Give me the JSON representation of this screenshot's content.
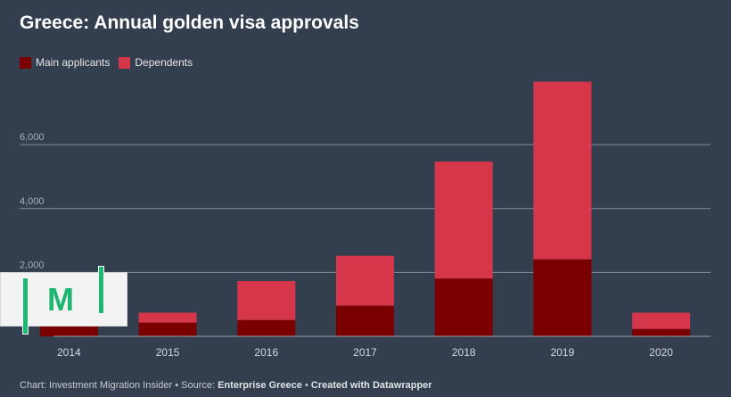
{
  "chart_data": {
    "type": "bar",
    "stacked": true,
    "title": "Greece: Annual golden visa approvals",
    "categories": [
      "2014",
      "2015",
      "2016",
      "2017",
      "2018",
      "2019",
      "2020"
    ],
    "series": [
      {
        "name": "Main applicants",
        "color": "#7a0000",
        "values": [
          400,
          430,
          510,
          960,
          1810,
          2410,
          230
        ]
      },
      {
        "name": "Dependents",
        "color": "#d63649",
        "values": [
          700,
          310,
          1220,
          1560,
          3660,
          5560,
          510
        ]
      }
    ],
    "ylim": [
      0,
      8000
    ],
    "yticks": [
      {
        "v": 2000,
        "label": "2,000"
      },
      {
        "v": 4000,
        "label": "4,000"
      },
      {
        "v": 6000,
        "label": "6,000"
      }
    ],
    "grid": true,
    "legend": "top-left",
    "xlabel": "",
    "ylabel": ""
  },
  "legend": [
    "Main applicants",
    "Dependents"
  ],
  "footer": {
    "prefix": "Chart: Investment Migration Insider • Source: ",
    "source": "Enterprise Greece",
    "sep": " • ",
    "credit": "Created with Datawrapper"
  },
  "logo": {
    "text": "M"
  }
}
